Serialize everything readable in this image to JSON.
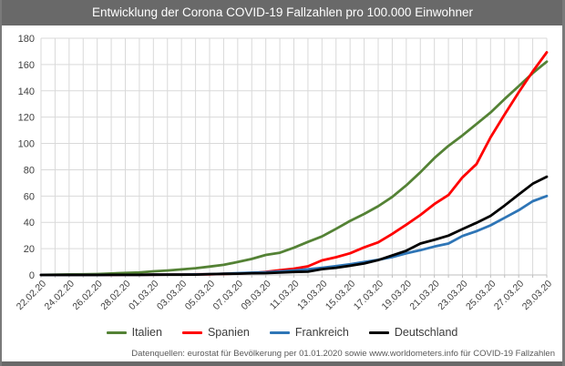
{
  "title": "Entwicklung der Corona COVID-19 Fallzahlen pro 100.000 Einwohner",
  "footer": "Datenquellen: eurostat für Bevölkerung per 01.01.2020 sowie www.worldometers.info für COVID-19 Fallzahlen",
  "colors": {
    "title_bar": "#696969",
    "frame_border": "#7a7a7a",
    "grid": "#d9d9d9",
    "axis": "#bfbfbf",
    "tick_label": "#404040",
    "footer_text": "#595959",
    "italien": "#548235",
    "spanien": "#ff0000",
    "frankreich": "#2e75b6",
    "deutschland": "#000000"
  },
  "chart_data": {
    "type": "line",
    "title": "Entwicklung der Corona COVID-19 Fallzahlen pro 100.000 Einwohner",
    "xlabel": "",
    "ylabel": "",
    "ylim": [
      0,
      180
    ],
    "ytick_step": 20,
    "grid": true,
    "legend_position": "bottom",
    "x_label_every": 2,
    "categories": [
      "22.02.20",
      "23.02.20",
      "24.02.20",
      "25.02.20",
      "26.02.20",
      "27.02.20",
      "28.02.20",
      "29.02.20",
      "01.03.20",
      "02.03.20",
      "03.03.20",
      "04.03.20",
      "05.03.20",
      "06.03.20",
      "07.03.20",
      "08.03.20",
      "09.03.20",
      "10.03.20",
      "11.03.20",
      "12.03.20",
      "13.03.20",
      "14.03.20",
      "15.03.20",
      "16.03.20",
      "17.03.20",
      "18.03.20",
      "19.03.20",
      "20.03.20",
      "21.03.20",
      "22.03.20",
      "23.03.20",
      "24.03.20",
      "25.03.20",
      "26.03.20",
      "27.03.20",
      "28.03.20",
      "29.03.20"
    ],
    "series": [
      {
        "name": "Italien",
        "color": "#548235",
        "values": [
          0.1,
          0.2,
          0.4,
          0.5,
          0.7,
          1.1,
          1.5,
          1.9,
          2.8,
          3.4,
          4.2,
          5.1,
          6.4,
          7.7,
          9.8,
          12.2,
          15.2,
          16.9,
          20.7,
          25.1,
          29.3,
          35.1,
          41.1,
          46.4,
          52.3,
          59.3,
          68.1,
          78.1,
          88.9,
          98.2,
          106.1,
          114.8,
          123.5,
          133.8,
          143.6,
          153.5,
          162.2
        ]
      },
      {
        "name": "Spanien",
        "color": "#ff0000",
        "values": [
          0,
          0,
          0,
          0,
          0,
          0,
          0.1,
          0.1,
          0.2,
          0.3,
          0.3,
          0.5,
          0.5,
          0.8,
          1.1,
          1.4,
          2.3,
          3.6,
          4.8,
          6.6,
          11.1,
          13.5,
          16.5,
          21.0,
          24.8,
          31.2,
          38.2,
          45.6,
          53.9,
          60.8,
          74.2,
          84.3,
          104.6,
          122.1,
          138.9,
          154.7,
          169.3
        ]
      },
      {
        "name": "Frankreich",
        "color": "#2e75b6",
        "values": [
          0,
          0,
          0,
          0,
          0,
          0.1,
          0.1,
          0.1,
          0.2,
          0.3,
          0.3,
          0.4,
          0.6,
          1.0,
          1.4,
          1.7,
          2.1,
          2.7,
          3.4,
          4.3,
          5.5,
          6.7,
          8.1,
          9.9,
          11.5,
          13.6,
          16.4,
          18.8,
          21.6,
          23.9,
          29.6,
          33.3,
          37.7,
          43.5,
          49.2,
          56.1,
          60.0
        ]
      },
      {
        "name": "Deutschland",
        "color": "#000000",
        "values": [
          0,
          0,
          0,
          0,
          0,
          0.1,
          0.1,
          0.1,
          0.2,
          0.2,
          0.2,
          0.3,
          0.6,
          0.8,
          1.0,
          1.3,
          1.4,
          1.8,
          2.3,
          2.5,
          4.4,
          5.5,
          7.0,
          8.7,
          11.3,
          14.8,
          18.4,
          23.9,
          26.7,
          29.9,
          34.9,
          39.7,
          44.9,
          52.8,
          61.2,
          69.4,
          74.7
        ]
      }
    ]
  }
}
